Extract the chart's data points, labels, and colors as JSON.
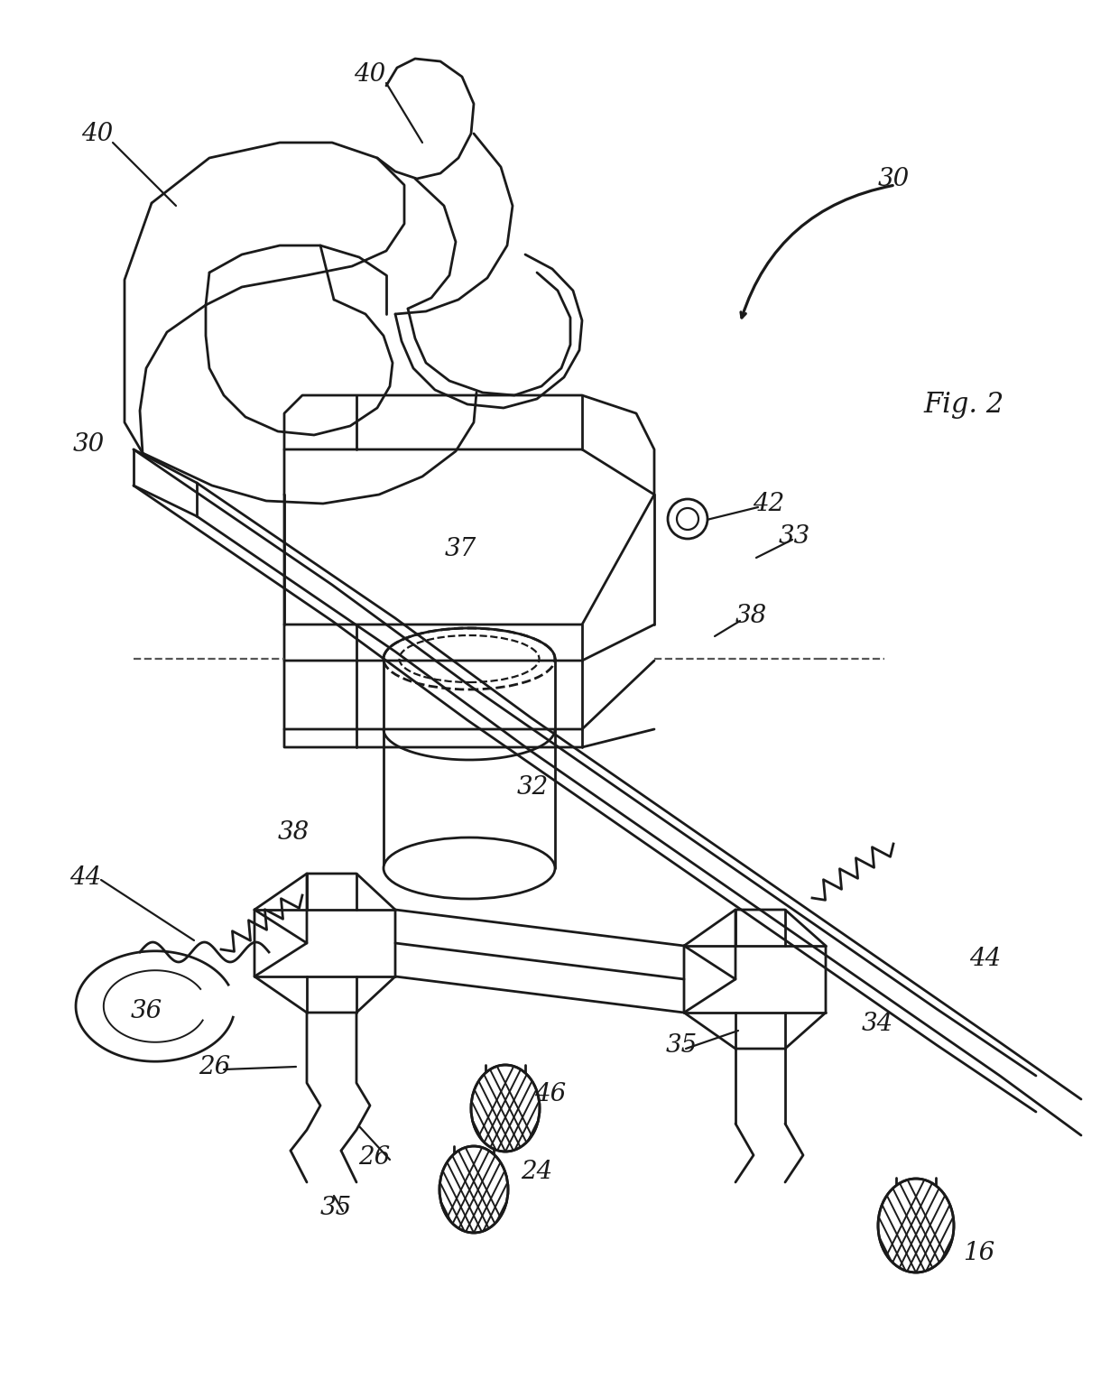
{
  "background": "#ffffff",
  "lc": "#1a1a1a",
  "lw": 2.0,
  "fig_label": "Fig. 2",
  "labels": [
    [
      108,
      148,
      "40"
    ],
    [
      410,
      82,
      "40"
    ],
    [
      98,
      492,
      "30"
    ],
    [
      990,
      198,
      "30"
    ],
    [
      510,
      608,
      "37"
    ],
    [
      590,
      872,
      "32"
    ],
    [
      852,
      558,
      "42"
    ],
    [
      880,
      595,
      "33"
    ],
    [
      832,
      682,
      "38"
    ],
    [
      325,
      922,
      "38"
    ],
    [
      95,
      972,
      "44"
    ],
    [
      1092,
      1062,
      "44"
    ],
    [
      238,
      1182,
      "26"
    ],
    [
      415,
      1282,
      "26"
    ],
    [
      162,
      1120,
      "36"
    ],
    [
      372,
      1338,
      "35"
    ],
    [
      755,
      1158,
      "35"
    ],
    [
      972,
      1135,
      "34"
    ],
    [
      610,
      1212,
      "46"
    ],
    [
      595,
      1298,
      "24"
    ],
    [
      1085,
      1388,
      "16"
    ]
  ]
}
